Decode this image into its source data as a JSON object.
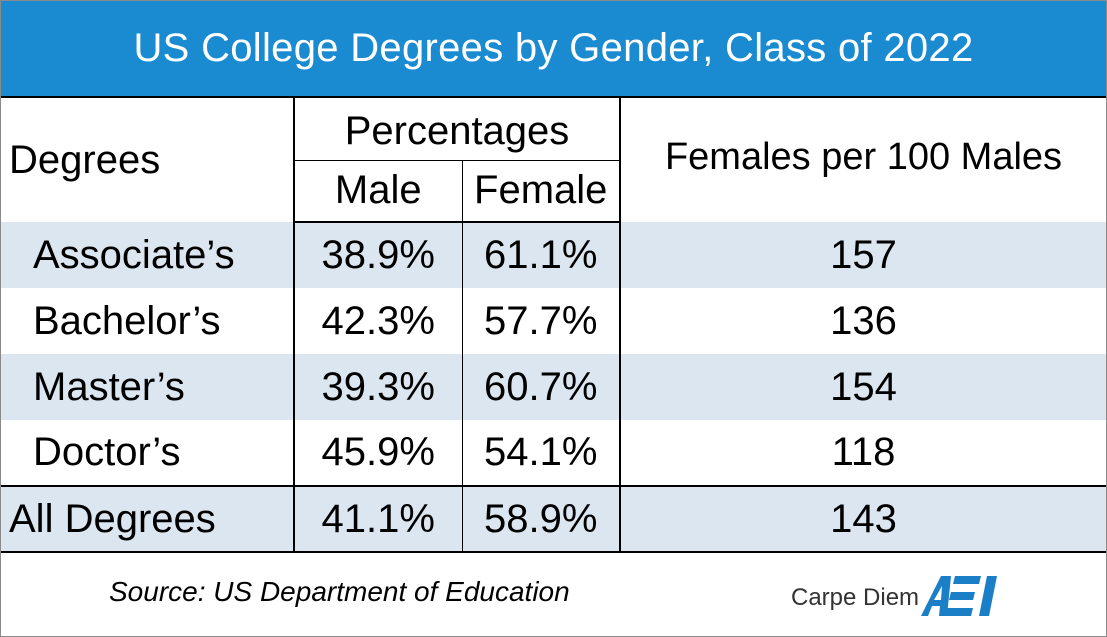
{
  "title": "US College Degrees by Gender, Class of 2022",
  "headers": {
    "degrees": "Degrees",
    "percentages": "Percentages",
    "male": "Male",
    "female": "Female",
    "ratio": "Females per 100 Males"
  },
  "rows": [
    {
      "degree": "Associate’s",
      "male": "38.9%",
      "female": "61.1%",
      "ratio": "157"
    },
    {
      "degree": "Bachelor’s",
      "male": "42.3%",
      "female": "57.7%",
      "ratio": "136"
    },
    {
      "degree": "Master’s",
      "male": "39.3%",
      "female": "60.7%",
      "ratio": "154"
    },
    {
      "degree": "Doctor’s",
      "male": "45.9%",
      "female": "54.1%",
      "ratio": "118"
    }
  ],
  "total": {
    "degree": "All Degrees",
    "male": "41.1%",
    "female": "58.9%",
    "ratio": "143"
  },
  "footer": {
    "source": "Source: US Department of Education",
    "brand": "Carpe Diem",
    "logo_text": "AEI"
  },
  "colors": {
    "title_bg": "#1a8bd1",
    "row_shade": "#dce6f0",
    "logo_blue": "#1a7fc6"
  },
  "chart_data": {
    "type": "table",
    "title": "US College Degrees by Gender, Class of 2022",
    "columns": [
      "Degrees",
      "Male",
      "Female",
      "Females per 100 Males"
    ],
    "column_group": {
      "Percentages": [
        "Male",
        "Female"
      ]
    },
    "categories": [
      "Associate’s",
      "Bachelor’s",
      "Master’s",
      "Doctor’s",
      "All Degrees"
    ],
    "series": [
      {
        "name": "Male (%)",
        "values": [
          38.9,
          42.3,
          39.3,
          45.9,
          41.1
        ]
      },
      {
        "name": "Female (%)",
        "values": [
          61.1,
          57.7,
          60.7,
          54.1,
          58.9
        ]
      },
      {
        "name": "Females per 100 Males",
        "values": [
          157,
          136,
          154,
          118,
          143
        ]
      }
    ],
    "source": "Source: US Department of Education"
  }
}
